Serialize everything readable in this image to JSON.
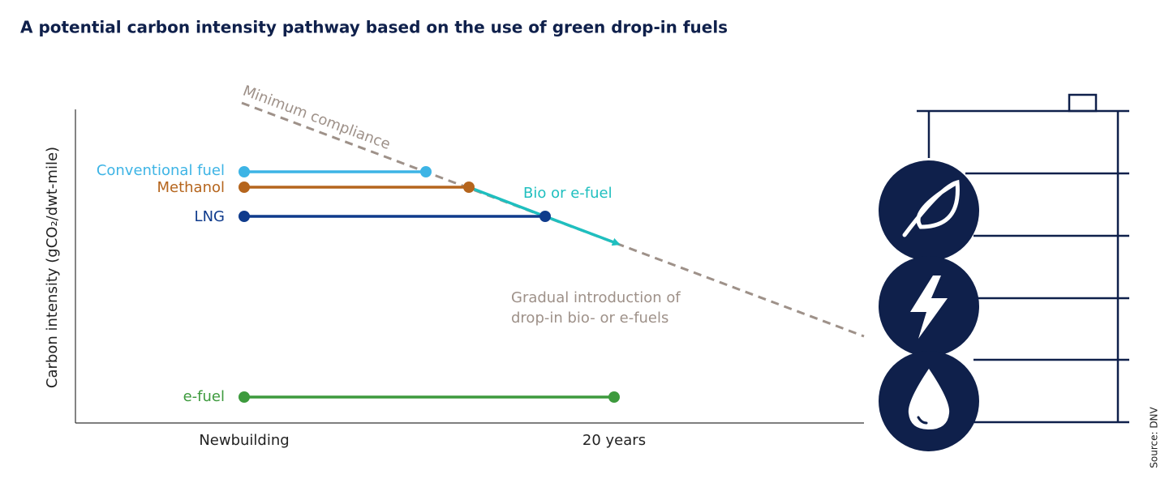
{
  "title": "A potential carbon intensity pathway based on the use of green drop-in fuels",
  "y_axis_label": "Carbon intensity (gCO₂/dwt-mile)",
  "x_labels": [
    "Newbuilding",
    "20 years"
  ],
  "fuels": [
    "Conventional fuel",
    "Methanol",
    "LNG",
    "e-fuel"
  ],
  "annotations": {
    "minimum_compliance": "Minimum compliance",
    "bio_or_e_fuel": "Bio or e-fuel",
    "gradual": [
      "Gradual introduction of",
      "drop-in bio- or e-fuels"
    ]
  },
  "source": "Source: DNV"
}
